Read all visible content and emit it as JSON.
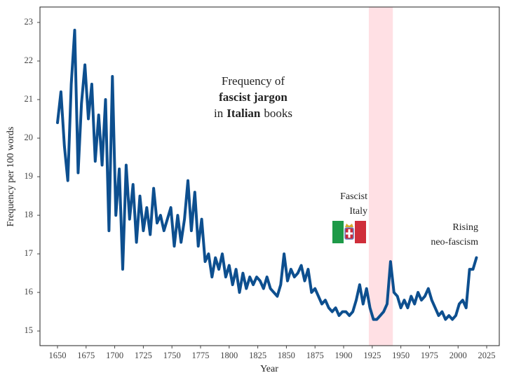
{
  "chart_data": {
    "type": "line",
    "title": [
      [
        {
          "text": "Frequency of"
        }
      ],
      [
        {
          "text": "fascist jargon",
          "bold": true
        }
      ],
      [
        {
          "text": "in"
        },
        {
          "text": "Italian",
          "bold": true
        },
        {
          "text": "books"
        }
      ]
    ],
    "x_label": "Year",
    "y_label": "Frequency per 100 words",
    "x": [
      1650,
      1653,
      1656,
      1659,
      1662,
      1665,
      1668,
      1671,
      1674,
      1677,
      1680,
      1683,
      1686,
      1689,
      1692,
      1695,
      1698,
      1701,
      1704,
      1707,
      1710,
      1713,
      1716,
      1719,
      1722,
      1725,
      1728,
      1731,
      1734,
      1737,
      1740,
      1743,
      1746,
      1749,
      1752,
      1755,
      1758,
      1761,
      1764,
      1767,
      1770,
      1773,
      1776,
      1779,
      1782,
      1785,
      1788,
      1791,
      1794,
      1797,
      1800,
      1803,
      1806,
      1809,
      1812,
      1815,
      1818,
      1821,
      1824,
      1827,
      1830,
      1833,
      1836,
      1839,
      1842,
      1845,
      1848,
      1851,
      1854,
      1857,
      1860,
      1863,
      1866,
      1869,
      1872,
      1875,
      1878,
      1881,
      1884,
      1887,
      1890,
      1893,
      1896,
      1899,
      1902,
      1905,
      1908,
      1911,
      1914,
      1917,
      1920,
      1923,
      1926,
      1929,
      1932,
      1935,
      1938,
      1941,
      1944,
      1947,
      1950,
      1953,
      1956,
      1959,
      1962,
      1965,
      1968,
      1971,
      1974,
      1977,
      1980,
      1983,
      1986,
      1989,
      1992,
      1995,
      1998,
      2001,
      2004,
      2007,
      2010,
      2013,
      2016
    ],
    "series": [
      {
        "color": "#0d4f8f",
        "values": [
          20.4,
          21.2,
          19.8,
          18.9,
          21.4,
          22.8,
          19.1,
          20.9,
          21.9,
          20.5,
          21.4,
          19.4,
          20.6,
          19.3,
          21.0,
          17.6,
          21.6,
          18.0,
          19.2,
          16.6,
          19.3,
          17.9,
          18.8,
          17.3,
          18.5,
          17.6,
          18.2,
          17.5,
          18.7,
          17.8,
          18.0,
          17.6,
          17.9,
          18.2,
          17.2,
          18.0,
          17.3,
          17.9,
          18.9,
          17.6,
          18.6,
          17.2,
          17.9,
          16.8,
          17.0,
          16.4,
          16.9,
          16.6,
          17.0,
          16.4,
          16.7,
          16.2,
          16.6,
          16.0,
          16.5,
          16.1,
          16.4,
          16.2,
          16.4,
          16.3,
          16.1,
          16.4,
          16.1,
          16.0,
          15.9,
          16.2,
          17.0,
          16.3,
          16.6,
          16.4,
          16.5,
          16.7,
          16.3,
          16.6,
          16.0,
          16.1,
          15.9,
          15.7,
          15.8,
          15.6,
          15.5,
          15.6,
          15.4,
          15.5,
          15.5,
          15.4,
          15.5,
          15.8,
          16.2,
          15.7,
          16.1,
          15.6,
          15.3,
          15.3,
          15.4,
          15.5,
          15.7,
          16.8,
          16.0,
          15.9,
          15.6,
          15.8,
          15.6,
          15.9,
          15.7,
          16.0,
          15.8,
          15.9,
          16.1,
          15.8,
          15.6,
          15.4,
          15.5,
          15.3,
          15.4,
          15.3,
          15.4,
          15.7,
          15.8,
          15.6,
          16.6,
          16.6,
          16.9
        ]
      }
    ],
    "xlim": [
      1634.7,
      2036
    ],
    "ylim": [
      14.62,
      23.4
    ],
    "xticks": [
      1650,
      1675,
      1700,
      1725,
      1750,
      1775,
      1800,
      1825,
      1850,
      1875,
      1900,
      1925,
      1950,
      1975,
      2000,
      2025
    ],
    "yticks": [
      15,
      16,
      17,
      18,
      19,
      20,
      21,
      22,
      23
    ],
    "shaded_span": {
      "x": [
        1922,
        1943
      ],
      "color": "#ffe0e4"
    },
    "annotations": [
      {
        "lines": [
          "Fascist",
          "Italy"
        ]
      },
      {
        "lines": [
          "Rising",
          "neo-fascism"
        ]
      }
    ]
  }
}
